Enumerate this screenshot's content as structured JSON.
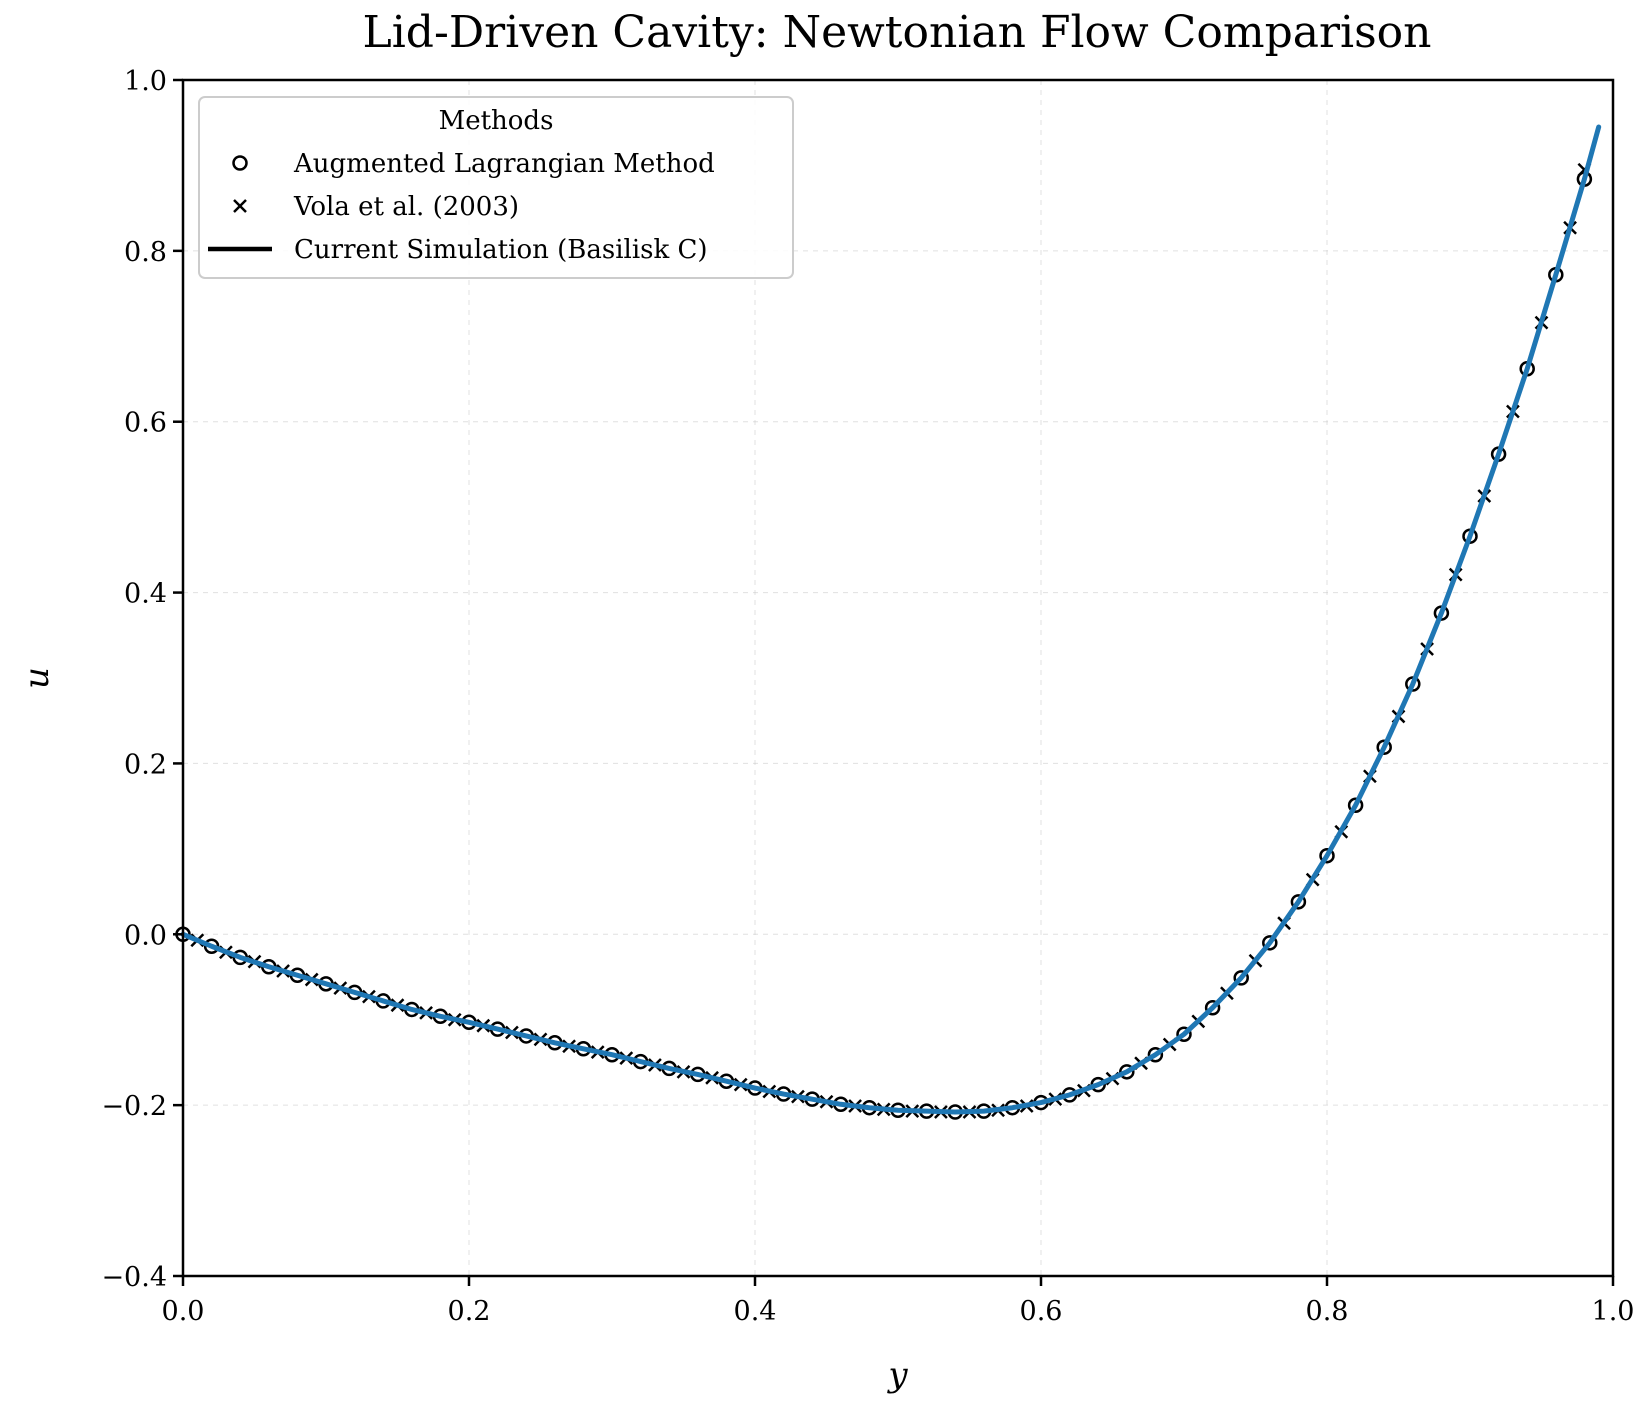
{
  "chart_data": {
    "type": "line",
    "title": "Lid-Driven Cavity: Newtonian Flow Comparison",
    "xlabel": "y",
    "ylabel": "u",
    "xlim": [
      0.0,
      1.0
    ],
    "ylim": [
      -0.4,
      1.0
    ],
    "x_ticks": [
      "0.0",
      "0.2",
      "0.4",
      "0.6",
      "0.8",
      "1.0"
    ],
    "y_ticks": [
      "−0.4",
      "−0.2",
      "0.0",
      "0.2",
      "0.4",
      "0.6",
      "0.8",
      "1.0"
    ],
    "grid": true,
    "legend": {
      "title": "Methods",
      "placement": "top-left"
    },
    "series": [
      {
        "name": "Augmented Lagrangian Method",
        "marker": "circle",
        "x": [
          0.0,
          0.02,
          0.04,
          0.06,
          0.08,
          0.1,
          0.12,
          0.14,
          0.16,
          0.18,
          0.2,
          0.22,
          0.24,
          0.26,
          0.28,
          0.3,
          0.32,
          0.34,
          0.36,
          0.38,
          0.4,
          0.42,
          0.44,
          0.46,
          0.48,
          0.5,
          0.52,
          0.54,
          0.56,
          0.58,
          0.6,
          0.62,
          0.64,
          0.66,
          0.68,
          0.7,
          0.72,
          0.74,
          0.76,
          0.78,
          0.8,
          0.82,
          0.84,
          0.86,
          0.88,
          0.9,
          0.92,
          0.94,
          0.96,
          0.98
        ],
        "y": [
          0.0,
          -0.014,
          -0.027,
          -0.038,
          -0.048,
          -0.058,
          -0.068,
          -0.078,
          -0.088,
          -0.096,
          -0.103,
          -0.111,
          -0.119,
          -0.127,
          -0.134,
          -0.141,
          -0.149,
          -0.157,
          -0.164,
          -0.172,
          -0.18,
          -0.187,
          -0.193,
          -0.199,
          -0.203,
          -0.206,
          -0.207,
          -0.208,
          -0.207,
          -0.203,
          -0.197,
          -0.188,
          -0.176,
          -0.161,
          -0.141,
          -0.117,
          -0.086,
          -0.051,
          -0.01,
          0.038,
          0.092,
          0.151,
          0.219,
          0.293,
          0.376,
          0.466,
          0.562,
          0.662,
          0.772,
          0.884
        ]
      },
      {
        "name": "Vola et al. (2003)",
        "marker": "cross",
        "x": [
          0.01,
          0.03,
          0.05,
          0.07,
          0.09,
          0.11,
          0.13,
          0.15,
          0.17,
          0.19,
          0.21,
          0.23,
          0.25,
          0.27,
          0.29,
          0.31,
          0.33,
          0.35,
          0.37,
          0.39,
          0.41,
          0.43,
          0.45,
          0.47,
          0.49,
          0.51,
          0.53,
          0.55,
          0.57,
          0.59,
          0.61,
          0.63,
          0.65,
          0.67,
          0.69,
          0.71,
          0.73,
          0.75,
          0.77,
          0.79,
          0.81,
          0.83,
          0.85,
          0.87,
          0.89,
          0.91,
          0.93,
          0.95,
          0.97,
          0.98
        ],
        "y": [
          -0.007,
          -0.021,
          -0.032,
          -0.043,
          -0.053,
          -0.063,
          -0.073,
          -0.083,
          -0.092,
          -0.1,
          -0.107,
          -0.115,
          -0.123,
          -0.131,
          -0.138,
          -0.145,
          -0.153,
          -0.161,
          -0.168,
          -0.176,
          -0.184,
          -0.19,
          -0.196,
          -0.201,
          -0.205,
          -0.207,
          -0.208,
          -0.208,
          -0.206,
          -0.201,
          -0.193,
          -0.183,
          -0.169,
          -0.151,
          -0.129,
          -0.102,
          -0.069,
          -0.031,
          0.013,
          0.064,
          0.12,
          0.185,
          0.255,
          0.334,
          0.421,
          0.513,
          0.612,
          0.716,
          0.827,
          0.895
        ]
      },
      {
        "name": "Current Simulation (Basilisk C)",
        "marker": "line",
        "color": "#1f77b4",
        "x": [
          0.0,
          0.02,
          0.04,
          0.06,
          0.08,
          0.1,
          0.12,
          0.14,
          0.16,
          0.18,
          0.2,
          0.22,
          0.24,
          0.26,
          0.28,
          0.3,
          0.32,
          0.34,
          0.36,
          0.38,
          0.4,
          0.42,
          0.44,
          0.46,
          0.48,
          0.5,
          0.52,
          0.54,
          0.56,
          0.58,
          0.6,
          0.62,
          0.64,
          0.66,
          0.68,
          0.7,
          0.72,
          0.74,
          0.76,
          0.78,
          0.8,
          0.82,
          0.84,
          0.86,
          0.88,
          0.9,
          0.92,
          0.94,
          0.96,
          0.98,
          0.99
        ],
        "y": [
          0.0,
          -0.014,
          -0.027,
          -0.038,
          -0.048,
          -0.058,
          -0.068,
          -0.078,
          -0.088,
          -0.096,
          -0.103,
          -0.111,
          -0.119,
          -0.127,
          -0.134,
          -0.141,
          -0.149,
          -0.157,
          -0.164,
          -0.172,
          -0.18,
          -0.187,
          -0.193,
          -0.199,
          -0.203,
          -0.206,
          -0.207,
          -0.208,
          -0.207,
          -0.203,
          -0.197,
          -0.188,
          -0.176,
          -0.161,
          -0.141,
          -0.117,
          -0.086,
          -0.051,
          -0.01,
          0.038,
          0.092,
          0.151,
          0.219,
          0.293,
          0.376,
          0.466,
          0.562,
          0.662,
          0.772,
          0.884,
          0.945
        ]
      }
    ]
  }
}
